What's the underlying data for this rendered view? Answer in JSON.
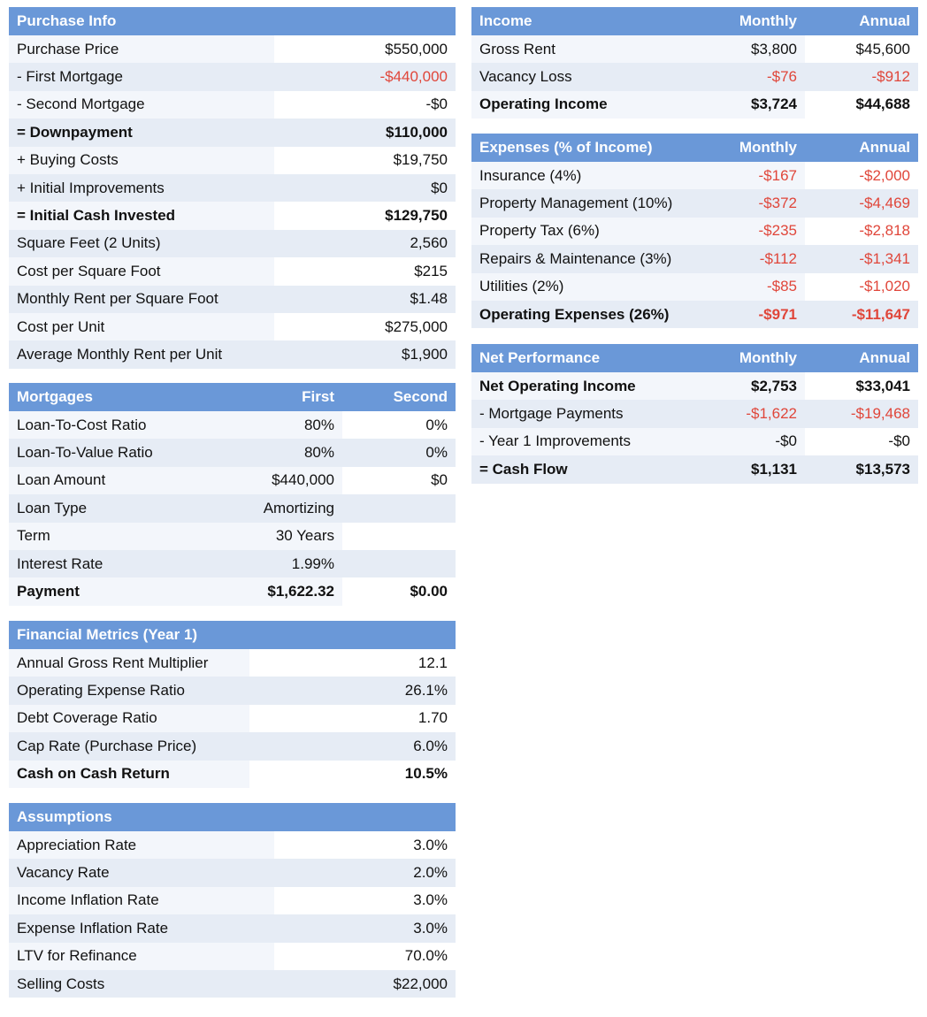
{
  "purchase_info": {
    "title": "Purchase Info",
    "rows": [
      {
        "label": "Purchase Price",
        "value": "$550,000"
      },
      {
        "label": "- First Mortgage",
        "value": "-$440,000"
      },
      {
        "label": "- Second Mortgage",
        "value": "-$0"
      },
      {
        "label": "= Downpayment",
        "value": "$110,000"
      },
      {
        "label": "+ Buying Costs",
        "value": "$19,750"
      },
      {
        "label": "+ Initial Improvements",
        "value": "$0"
      },
      {
        "label": "= Initial Cash Invested",
        "value": "$129,750"
      },
      {
        "label": "Square Feet (2 Units)",
        "value": "2,560"
      },
      {
        "label": "Cost per Square Foot",
        "value": "$215"
      },
      {
        "label": "Monthly Rent per Square Foot",
        "value": "$1.48"
      },
      {
        "label": "Cost per Unit",
        "value": "$275,000"
      },
      {
        "label": "Average Monthly Rent per Unit",
        "value": "$1,900"
      }
    ]
  },
  "mortgages": {
    "title": "Mortgages",
    "col1": "First",
    "col2": "Second",
    "rows": [
      {
        "label": "Loan-To-Cost Ratio",
        "first": "80%",
        "second": "0%"
      },
      {
        "label": "Loan-To-Value Ratio",
        "first": "80%",
        "second": "0%"
      },
      {
        "label": "Loan Amount",
        "first": "$440,000",
        "second": "$0"
      },
      {
        "label": "Loan Type",
        "first": "Amortizing",
        "second": ""
      },
      {
        "label": "Term",
        "first": "30 Years",
        "second": ""
      },
      {
        "label": "Interest Rate",
        "first": "1.99%",
        "second": ""
      },
      {
        "label": "Payment",
        "first": "$1,622.32",
        "second": "$0.00"
      }
    ]
  },
  "financial_metrics": {
    "title": "Financial Metrics (Year 1)",
    "rows": [
      {
        "label": "Annual Gross Rent Multiplier",
        "value": "12.1"
      },
      {
        "label": "Operating Expense Ratio",
        "value": "26.1%"
      },
      {
        "label": "Debt Coverage Ratio",
        "value": "1.70"
      },
      {
        "label": "Cap Rate (Purchase Price)",
        "value": "6.0%"
      },
      {
        "label": "Cash on Cash Return",
        "value": "10.5%"
      }
    ]
  },
  "assumptions": {
    "title": "Assumptions",
    "rows": [
      {
        "label": "Appreciation Rate",
        "value": "3.0%"
      },
      {
        "label": "Vacancy Rate",
        "value": "2.0%"
      },
      {
        "label": "Income Inflation Rate",
        "value": "3.0%"
      },
      {
        "label": "Expense Inflation Rate",
        "value": "3.0%"
      },
      {
        "label": "LTV for Refinance",
        "value": "70.0%"
      },
      {
        "label": "Selling Costs",
        "value": "$22,000"
      }
    ]
  },
  "income": {
    "title": "Income",
    "col1": "Monthly",
    "col2": "Annual",
    "rows": [
      {
        "label": "Gross Rent",
        "monthly": "$3,800",
        "annual": "$45,600"
      },
      {
        "label": "Vacancy Loss",
        "monthly": "-$76",
        "annual": "-$912"
      },
      {
        "label": "Operating Income",
        "monthly": "$3,724",
        "annual": "$44,688"
      }
    ]
  },
  "expenses": {
    "title": "Expenses (% of Income)",
    "col1": "Monthly",
    "col2": "Annual",
    "rows": [
      {
        "label": "Insurance (4%)",
        "monthly": "-$167",
        "annual": "-$2,000"
      },
      {
        "label": "Property Management (10%)",
        "monthly": "-$372",
        "annual": "-$4,469"
      },
      {
        "label": "Property Tax (6%)",
        "monthly": "-$235",
        "annual": "-$2,818"
      },
      {
        "label": "Repairs & Maintenance (3%)",
        "monthly": "-$112",
        "annual": "-$1,341"
      },
      {
        "label": "Utilities (2%)",
        "monthly": "-$85",
        "annual": "-$1,020"
      },
      {
        "label": "Operating Expenses (26%)",
        "monthly": "-$971",
        "annual": "-$11,647"
      }
    ]
  },
  "net_performance": {
    "title": "Net Performance",
    "col1": "Monthly",
    "col2": "Annual",
    "rows": [
      {
        "label": "Net Operating Income",
        "monthly": "$2,753",
        "annual": "$33,041"
      },
      {
        "label": "- Mortgage Payments",
        "monthly": "-$1,622",
        "annual": "-$19,468"
      },
      {
        "label": "- Year 1 Improvements",
        "monthly": "-$0",
        "annual": "-$0"
      },
      {
        "label": "= Cash Flow",
        "monthly": "$1,131",
        "annual": "$13,573"
      }
    ]
  },
  "colors": {
    "header": "#6a98d8",
    "negative": "#e0463a"
  }
}
